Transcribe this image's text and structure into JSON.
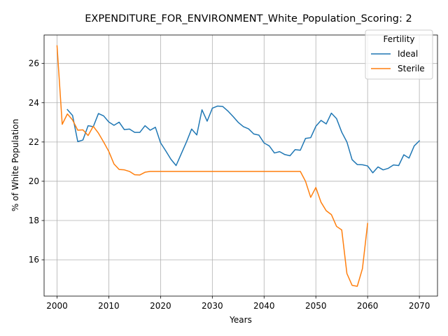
{
  "chart_data": {
    "type": "line",
    "title": "EXPENDITURE_FOR_ENVIRONMENT_White_Population_Scoring: 2",
    "xlabel": "Years",
    "ylabel": "% of White Population",
    "xlim": [
      1997.5,
      2073.5
    ],
    "ylim": [
      14.15,
      27.45
    ],
    "xticks": [
      2000,
      2010,
      2020,
      2030,
      2040,
      2050,
      2060,
      2070
    ],
    "yticks": [
      16,
      18,
      20,
      22,
      24,
      26
    ],
    "grid": true,
    "legend": {
      "title": "Fertility",
      "placement": "top-right"
    },
    "series": [
      {
        "name": "Ideal",
        "color": "#1f77b4",
        "x": [
          2002,
          2003,
          2004,
          2005,
          2006,
          2007,
          2008,
          2009,
          2010,
          2011,
          2012,
          2013,
          2014,
          2015,
          2016,
          2017,
          2018,
          2019,
          2020,
          2021,
          2022,
          2023,
          2024,
          2025,
          2026,
          2027,
          2028,
          2029,
          2030,
          2031,
          2032,
          2033,
          2034,
          2035,
          2036,
          2037,
          2038,
          2039,
          2040,
          2041,
          2042,
          2043,
          2044,
          2045,
          2046,
          2047,
          2048,
          2049,
          2050,
          2051,
          2052,
          2053,
          2054,
          2055,
          2056,
          2057,
          2058,
          2059,
          2060,
          2061,
          2062,
          2063,
          2064,
          2065,
          2066,
          2067,
          2068,
          2069,
          2070
        ],
        "y": [
          23.65,
          23.35,
          22.02,
          22.1,
          22.83,
          22.78,
          23.45,
          23.33,
          23.02,
          22.85,
          23.01,
          22.63,
          22.66,
          22.49,
          22.49,
          22.83,
          22.6,
          22.75,
          21.96,
          21.55,
          21.12,
          20.8,
          21.4,
          22.0,
          22.66,
          22.36,
          23.64,
          23.06,
          23.72,
          23.83,
          23.81,
          23.58,
          23.3,
          23.0,
          22.78,
          22.67,
          22.41,
          22.35,
          21.95,
          21.8,
          21.44,
          21.51,
          21.36,
          21.3,
          21.61,
          21.58,
          22.18,
          22.22,
          22.8,
          23.1,
          22.92,
          23.47,
          23.19,
          22.5,
          22.0,
          21.1,
          20.85,
          20.84,
          20.78,
          20.43,
          20.73,
          20.58,
          20.66,
          20.83,
          20.8,
          21.35,
          21.18,
          21.8,
          22.06
        ]
      },
      {
        "name": "Sterile",
        "color": "#ff7f0e",
        "x": [
          2000,
          2001,
          2002,
          2003,
          2004,
          2005,
          2006,
          2007,
          2008,
          2009,
          2010,
          2011,
          2012,
          2013,
          2014,
          2015,
          2016,
          2017,
          2018,
          2019,
          2020,
          2021,
          2022,
          2023,
          2024,
          2025,
          2026,
          2027,
          2028,
          2029,
          2030,
          2031,
          2032,
          2033,
          2034,
          2035,
          2036,
          2037,
          2038,
          2039,
          2040,
          2041,
          2042,
          2043,
          2044,
          2045,
          2046,
          2047,
          2048,
          2049,
          2050,
          2051,
          2052,
          2053,
          2054,
          2055,
          2056,
          2057,
          2058,
          2059,
          2060
        ],
        "y": [
          26.9,
          22.9,
          23.43,
          23.12,
          22.6,
          22.62,
          22.33,
          22.8,
          22.45,
          22.0,
          21.52,
          20.88,
          20.6,
          20.58,
          20.5,
          20.33,
          20.32,
          20.46,
          20.5,
          20.5,
          20.5,
          20.5,
          20.5,
          20.5,
          20.5,
          20.5,
          20.5,
          20.5,
          20.5,
          20.5,
          20.5,
          20.5,
          20.5,
          20.5,
          20.5,
          20.5,
          20.5,
          20.5,
          20.5,
          20.5,
          20.5,
          20.5,
          20.5,
          20.5,
          20.5,
          20.5,
          20.5,
          20.5,
          20.0,
          19.18,
          19.68,
          18.93,
          18.5,
          18.3,
          17.7,
          17.52,
          15.3,
          14.7,
          14.65,
          15.55,
          17.85
        ]
      }
    ]
  }
}
